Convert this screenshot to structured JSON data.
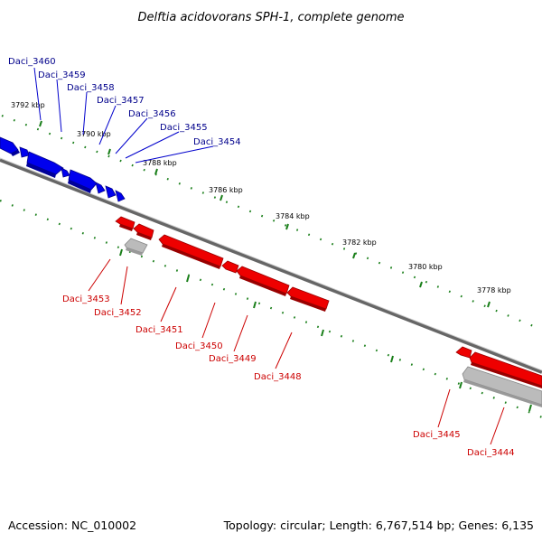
{
  "title": "Delftia acidovorans SPH-1, complete genome",
  "footer": {
    "accession": "Accession: NC_010002",
    "topology": "Topology: circular; Length: 6,767,514 bp; Genes: 6,135"
  },
  "colors": {
    "forward_gene": "#0000ee",
    "reverse_gene": "#ee0000",
    "pseudo_gene": "#bbbbbb",
    "backbone": "#777777",
    "tick": "#1a7f1a",
    "label_blue": "#00008b",
    "label_red": "#cc0000"
  },
  "scale_ticks": [
    "3792 kbp",
    "3790 kbp",
    "3788 kbp",
    "3786 kbp",
    "3784 kbp",
    "3782 kbp",
    "3780 kbp",
    "3778 kbp"
  ],
  "forward_genes": [
    "Daci_3460",
    "Daci_3459",
    "Daci_3458",
    "Daci_3457",
    "Daci_3456",
    "Daci_3455",
    "Daci_3454"
  ],
  "reverse_genes": [
    "Daci_3453",
    "Daci_3452",
    "Daci_3451",
    "Daci_3450",
    "Daci_3449",
    "Daci_3448",
    "Daci_3445",
    "Daci_3444"
  ]
}
